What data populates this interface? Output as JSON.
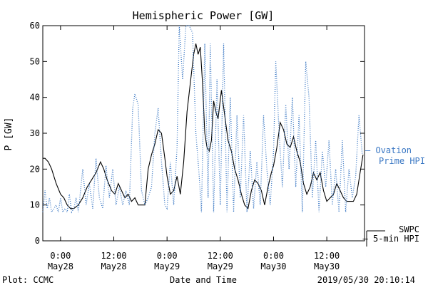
{
  "chart_data": {
    "type": "line",
    "title": "Hemispheric Power [GW]",
    "xlabel": "Date and Time",
    "ylabel": "P [GW]",
    "ylim": [
      0,
      60
    ],
    "yticks": [
      0,
      10,
      20,
      30,
      40,
      50,
      60
    ],
    "xlim": [
      "2019-05-27T20:00",
      "2019-05-30T20:30"
    ],
    "xticks": [
      {
        "t": "2019-05-28T00:00",
        "time": "0:00",
        "date": "May28"
      },
      {
        "t": "2019-05-28T12:00",
        "time": "12:00",
        "date": "May28"
      },
      {
        "t": "2019-05-29T00:00",
        "time": "0:00",
        "date": "May29"
      },
      {
        "t": "2019-05-29T12:00",
        "time": "12:00",
        "date": "May29"
      },
      {
        "t": "2019-05-30T00:00",
        "time": "0:00",
        "date": "May30"
      },
      {
        "t": "2019-05-30T12:00",
        "time": "12:00",
        "date": "May30"
      }
    ],
    "grid": false,
    "legend": "right",
    "series": [
      {
        "name": "SWPC 5-min HPI",
        "label_lines": [
          "SWPC",
          "5-min HPI"
        ],
        "label_prefix": "—",
        "style": "solid",
        "color": "#000000",
        "points": [
          [
            "2019-05-27T20:00",
            23
          ],
          [
            "2019-05-27T20:30",
            23
          ],
          [
            "2019-05-27T21:15",
            22
          ],
          [
            "2019-05-27T22:00",
            20
          ],
          [
            "2019-05-27T23:00",
            16
          ],
          [
            "2019-05-28T00:00",
            13
          ],
          [
            "2019-05-28T00:45",
            12
          ],
          [
            "2019-05-28T01:30",
            10
          ],
          [
            "2019-05-28T02:15",
            9
          ],
          [
            "2019-05-28T03:00",
            9
          ],
          [
            "2019-05-28T04:00",
            10
          ],
          [
            "2019-05-28T05:00",
            12
          ],
          [
            "2019-05-28T06:00",
            15
          ],
          [
            "2019-05-28T07:00",
            17
          ],
          [
            "2019-05-28T08:00",
            19
          ],
          [
            "2019-05-28T09:00",
            22
          ],
          [
            "2019-05-28T09:45",
            20
          ],
          [
            "2019-05-28T10:30",
            17
          ],
          [
            "2019-05-28T11:30",
            14
          ],
          [
            "2019-05-28T12:15",
            13
          ],
          [
            "2019-05-28T13:00",
            16
          ],
          [
            "2019-05-28T13:45",
            14
          ],
          [
            "2019-05-28T14:30",
            12
          ],
          [
            "2019-05-28T15:15",
            13
          ],
          [
            "2019-05-28T16:00",
            11
          ],
          [
            "2019-05-28T16:45",
            12
          ],
          [
            "2019-05-28T17:30",
            10
          ],
          [
            "2019-05-28T18:30",
            10
          ],
          [
            "2019-05-28T19:00",
            10
          ],
          [
            "2019-05-28T19:45",
            20
          ],
          [
            "2019-05-28T20:30",
            24
          ],
          [
            "2019-05-28T21:15",
            27
          ],
          [
            "2019-05-28T22:00",
            31
          ],
          [
            "2019-05-28T22:45",
            30
          ],
          [
            "2019-05-28T23:30",
            23
          ],
          [
            "2019-05-29T00:00",
            18
          ],
          [
            "2019-05-29T00:45",
            13
          ],
          [
            "2019-05-29T01:30",
            14
          ],
          [
            "2019-05-29T02:15",
            18
          ],
          [
            "2019-05-29T03:00",
            13
          ],
          [
            "2019-05-29T03:45",
            22
          ],
          [
            "2019-05-29T04:30",
            36
          ],
          [
            "2019-05-29T05:15",
            44
          ],
          [
            "2019-05-29T06:00",
            52
          ],
          [
            "2019-05-29T06:30",
            55
          ],
          [
            "2019-05-29T07:00",
            52
          ],
          [
            "2019-05-29T07:30",
            54
          ],
          [
            "2019-05-29T08:00",
            44
          ],
          [
            "2019-05-29T08:30",
            30
          ],
          [
            "2019-05-29T09:00",
            26
          ],
          [
            "2019-05-29T09:30",
            25
          ],
          [
            "2019-05-29T10:00",
            28
          ],
          [
            "2019-05-29T10:30",
            39
          ],
          [
            "2019-05-29T11:00",
            36
          ],
          [
            "2019-05-29T11:30",
            34
          ],
          [
            "2019-05-29T12:15",
            42
          ],
          [
            "2019-05-29T13:00",
            35
          ],
          [
            "2019-05-29T13:45",
            28
          ],
          [
            "2019-05-29T14:30",
            25
          ],
          [
            "2019-05-29T15:15",
            20
          ],
          [
            "2019-05-29T16:00",
            17
          ],
          [
            "2019-05-29T16:45",
            13
          ],
          [
            "2019-05-29T17:30",
            10
          ],
          [
            "2019-05-29T18:15",
            9
          ],
          [
            "2019-05-29T19:00",
            14
          ],
          [
            "2019-05-29T19:45",
            17
          ],
          [
            "2019-05-29T20:30",
            16
          ],
          [
            "2019-05-29T21:15",
            14
          ],
          [
            "2019-05-29T22:00",
            10
          ],
          [
            "2019-05-29T22:45",
            15
          ],
          [
            "2019-05-29T23:30",
            19
          ],
          [
            "2019-05-30T00:00",
            21
          ],
          [
            "2019-05-30T00:45",
            26
          ],
          [
            "2019-05-30T01:30",
            33
          ],
          [
            "2019-05-30T02:15",
            31
          ],
          [
            "2019-05-30T03:00",
            27
          ],
          [
            "2019-05-30T03:45",
            26
          ],
          [
            "2019-05-30T04:30",
            29
          ],
          [
            "2019-05-30T05:15",
            25
          ],
          [
            "2019-05-30T06:00",
            22
          ],
          [
            "2019-05-30T06:45",
            16
          ],
          [
            "2019-05-30T07:30",
            13
          ],
          [
            "2019-05-30T08:15",
            15
          ],
          [
            "2019-05-30T09:00",
            19
          ],
          [
            "2019-05-30T09:45",
            17
          ],
          [
            "2019-05-30T10:30",
            19
          ],
          [
            "2019-05-30T11:15",
            14
          ],
          [
            "2019-05-30T12:00",
            11
          ],
          [
            "2019-05-30T12:45",
            12
          ],
          [
            "2019-05-30T13:30",
            13
          ],
          [
            "2019-05-30T14:15",
            16
          ],
          [
            "2019-05-30T15:00",
            14
          ],
          [
            "2019-05-30T15:45",
            12
          ],
          [
            "2019-05-30T16:30",
            11
          ],
          [
            "2019-05-30T17:15",
            11
          ],
          [
            "2019-05-30T18:00",
            11
          ],
          [
            "2019-05-30T18:45",
            13
          ],
          [
            "2019-05-30T19:30",
            19
          ],
          [
            "2019-05-30T20:10",
            24
          ]
        ]
      },
      {
        "name": "Ovation Prime HPI",
        "label_lines": [
          "Ovation",
          "Prime HPI"
        ],
        "label_prefix": "–",
        "style": "dotted",
        "color": "#3b78c4",
        "points": [
          [
            "2019-05-27T20:00",
            8
          ],
          [
            "2019-05-27T20:30",
            14
          ],
          [
            "2019-05-27T21:00",
            9
          ],
          [
            "2019-05-27T21:30",
            12
          ],
          [
            "2019-05-27T22:00",
            8
          ],
          [
            "2019-05-27T22:30",
            9
          ],
          [
            "2019-05-27T23:00",
            10
          ],
          [
            "2019-05-27T23:30",
            8
          ],
          [
            "2019-05-28T00:00",
            12
          ],
          [
            "2019-05-28T00:30",
            8
          ],
          [
            "2019-05-28T01:00",
            9
          ],
          [
            "2019-05-28T01:30",
            8
          ],
          [
            "2019-05-28T02:00",
            13
          ],
          [
            "2019-05-28T02:30",
            8
          ],
          [
            "2019-05-28T03:00",
            9
          ],
          [
            "2019-05-28T03:30",
            12
          ],
          [
            "2019-05-28T04:00",
            8
          ],
          [
            "2019-05-28T05:00",
            20
          ],
          [
            "2019-05-28T05:45",
            10
          ],
          [
            "2019-05-28T06:30",
            16
          ],
          [
            "2019-05-28T07:15",
            9
          ],
          [
            "2019-05-28T08:00",
            23
          ],
          [
            "2019-05-28T08:45",
            12
          ],
          [
            "2019-05-28T09:30",
            9
          ],
          [
            "2019-05-28T10:15",
            21
          ],
          [
            "2019-05-28T11:00",
            12
          ],
          [
            "2019-05-28T11:45",
            20
          ],
          [
            "2019-05-28T12:30",
            10
          ],
          [
            "2019-05-28T13:15",
            15
          ],
          [
            "2019-05-28T14:00",
            10
          ],
          [
            "2019-05-28T14:45",
            14
          ],
          [
            "2019-05-28T15:30",
            10
          ],
          [
            "2019-05-28T16:15",
            37
          ],
          [
            "2019-05-28T16:45",
            41
          ],
          [
            "2019-05-28T17:30",
            38
          ],
          [
            "2019-05-28T18:15",
            14
          ],
          [
            "2019-05-28T19:00",
            10
          ],
          [
            "2019-05-28T19:45",
            12
          ],
          [
            "2019-05-28T20:30",
            15
          ],
          [
            "2019-05-28T21:15",
            30
          ],
          [
            "2019-05-28T22:00",
            37
          ],
          [
            "2019-05-28T22:45",
            22
          ],
          [
            "2019-05-28T23:30",
            10
          ],
          [
            "2019-05-29T00:00",
            9
          ],
          [
            "2019-05-29T00:45",
            22
          ],
          [
            "2019-05-29T01:30",
            10
          ],
          [
            "2019-05-29T02:15",
            26
          ],
          [
            "2019-05-29T02:45",
            60
          ],
          [
            "2019-05-29T03:30",
            45
          ],
          [
            "2019-05-29T04:15",
            60
          ],
          [
            "2019-05-29T05:00",
            60
          ],
          [
            "2019-05-29T05:45",
            58
          ],
          [
            "2019-05-29T06:30",
            30
          ],
          [
            "2019-05-29T07:15",
            18
          ],
          [
            "2019-05-29T07:45",
            8
          ],
          [
            "2019-05-29T08:30",
            55
          ],
          [
            "2019-05-29T09:15",
            12
          ],
          [
            "2019-05-29T09:45",
            55
          ],
          [
            "2019-05-29T10:30",
            8
          ],
          [
            "2019-05-29T11:15",
            45
          ],
          [
            "2019-05-29T12:00",
            10
          ],
          [
            "2019-05-29T12:45",
            55
          ],
          [
            "2019-05-29T13:30",
            8
          ],
          [
            "2019-05-29T14:15",
            40
          ],
          [
            "2019-05-29T15:00",
            8
          ],
          [
            "2019-05-29T15:45",
            35
          ],
          [
            "2019-05-29T16:30",
            12
          ],
          [
            "2019-05-29T17:15",
            35
          ],
          [
            "2019-05-29T18:00",
            8
          ],
          [
            "2019-05-29T18:45",
            25
          ],
          [
            "2019-05-29T19:30",
            9
          ],
          [
            "2019-05-29T20:15",
            22
          ],
          [
            "2019-05-29T21:00",
            10
          ],
          [
            "2019-05-29T21:45",
            35
          ],
          [
            "2019-05-29T22:30",
            20
          ],
          [
            "2019-05-29T23:15",
            10
          ],
          [
            "2019-05-30T00:00",
            25
          ],
          [
            "2019-05-30T00:30",
            50
          ],
          [
            "2019-05-30T01:15",
            30
          ],
          [
            "2019-05-30T02:00",
            15
          ],
          [
            "2019-05-30T02:45",
            38
          ],
          [
            "2019-05-30T03:30",
            20
          ],
          [
            "2019-05-30T04:15",
            40
          ],
          [
            "2019-05-30T05:00",
            15
          ],
          [
            "2019-05-30T05:45",
            35
          ],
          [
            "2019-05-30T06:30",
            8
          ],
          [
            "2019-05-30T07:15",
            50
          ],
          [
            "2019-05-30T08:00",
            40
          ],
          [
            "2019-05-30T08:45",
            12
          ],
          [
            "2019-05-30T09:30",
            28
          ],
          [
            "2019-05-30T10:15",
            8
          ],
          [
            "2019-05-30T11:00",
            25
          ],
          [
            "2019-05-30T11:45",
            15
          ],
          [
            "2019-05-30T12:30",
            28
          ],
          [
            "2019-05-30T13:15",
            10
          ],
          [
            "2019-05-30T14:00",
            20
          ],
          [
            "2019-05-30T14:45",
            8
          ],
          [
            "2019-05-30T15:30",
            28
          ],
          [
            "2019-05-30T16:15",
            8
          ],
          [
            "2019-05-30T17:00",
            20
          ],
          [
            "2019-05-30T17:45",
            12
          ],
          [
            "2019-05-30T18:30",
            18
          ],
          [
            "2019-05-30T19:15",
            35
          ],
          [
            "2019-05-30T20:00",
            24
          ]
        ]
      }
    ]
  },
  "footer": {
    "plot_credit": "Plot: CCMC",
    "timestamp": "2019/05/30 20:10:14"
  }
}
